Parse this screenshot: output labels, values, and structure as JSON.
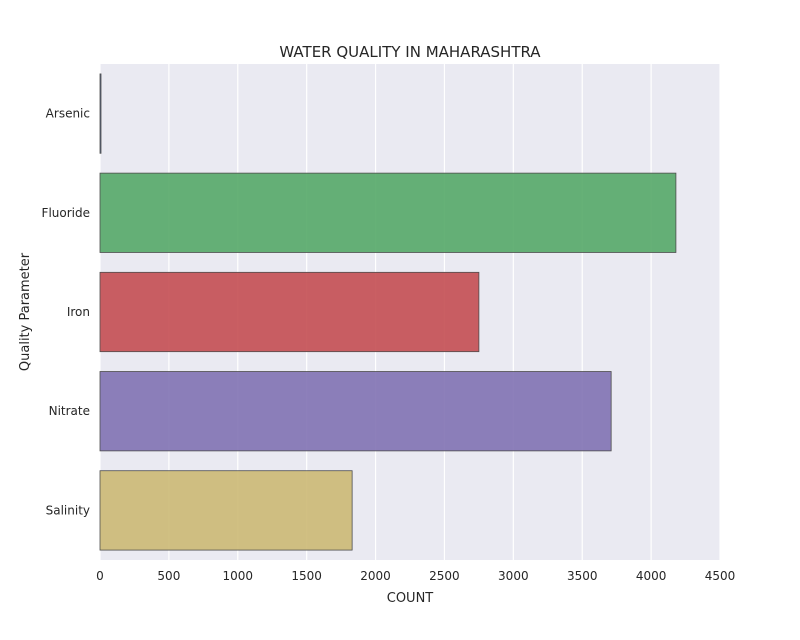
{
  "chart_data": {
    "type": "bar",
    "orientation": "horizontal",
    "title": "WATER QUALITY IN MAHARASHTRA",
    "xlabel": "COUNT",
    "ylabel": "Quality Parameter",
    "categories": [
      "Arsenic",
      "Fluoride",
      "Iron",
      "Nitrate",
      "Salinity"
    ],
    "values": [
      2,
      4180,
      2750,
      3710,
      1830
    ],
    "xlim": [
      0,
      4500
    ],
    "xticks": [
      0,
      500,
      1000,
      1500,
      2000,
      2500,
      3000,
      3500,
      4000,
      4500
    ],
    "grid": true,
    "colors": [
      "#4c72b0",
      "#55a868",
      "#c44e52",
      "#8172b2",
      "#ccb974"
    ],
    "plot_background": "#eaeaf2"
  }
}
